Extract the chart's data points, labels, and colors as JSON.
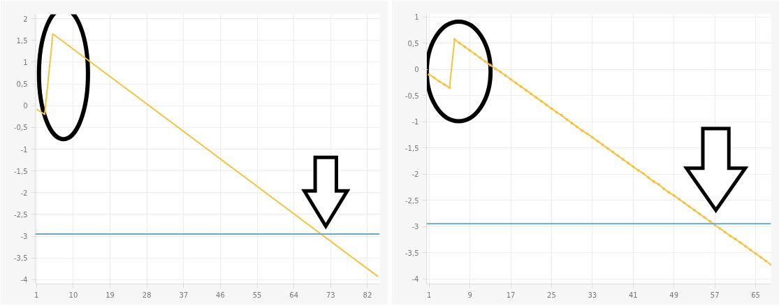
{
  "chart_data": [
    {
      "type": "line",
      "marker": "none",
      "grid": true,
      "xlim": [
        0.7,
        85
      ],
      "ylim": [
        -4.1,
        2.1
      ],
      "xticks": [
        1,
        10,
        19,
        28,
        37,
        46,
        55,
        64,
        73,
        82
      ],
      "yticks": [
        {
          "value": 2,
          "label": "2"
        },
        {
          "value": 1.5,
          "label": "1,5"
        },
        1,
        {
          "value": 0.5,
          "label": "0,5"
        },
        0,
        {
          "value": -0.5,
          "label": "-0,5"
        },
        -1,
        {
          "value": -1.5,
          "label": "-1,5"
        },
        -2,
        {
          "value": -2.5,
          "label": "-2,5"
        },
        -3,
        {
          "value": -3.5,
          "label": "-3,5"
        },
        -4
      ],
      "series": [
        {
          "color": "#f5c342",
          "x": [
            1,
            3,
            5,
            84.6
          ],
          "values": [
            -0.08,
            -0.2,
            1.65,
            -3.93
          ]
        }
      ],
      "ref_lines": [
        {
          "axis": "y",
          "value": -2.95,
          "color": "#6aa8c4"
        }
      ]
    },
    {
      "type": "line",
      "marker": "circle",
      "grid": true,
      "xlim": [
        0.5,
        68
      ],
      "ylim": [
        -4.1,
        1.05
      ],
      "xticks": [
        1,
        9,
        17,
        25,
        33,
        41,
        49,
        57,
        65
      ],
      "yticks": [
        1,
        {
          "value": 0.5,
          "label": "0,5"
        },
        0,
        {
          "value": -0.5,
          "label": "-0,5"
        },
        -1,
        {
          "value": -1.5,
          "label": "-1,5"
        },
        -2,
        {
          "value": -2.5,
          "label": "-2,5"
        },
        -3,
        {
          "value": -3.5,
          "label": "-3,5"
        },
        -4
      ],
      "series": [
        {
          "color": "#f5c342",
          "x": [
            1,
            2,
            3,
            4,
            5,
            6,
            7,
            8,
            9,
            10,
            11,
            12,
            13,
            14,
            15,
            16,
            17,
            18,
            19,
            20,
            21,
            22,
            23,
            24,
            25,
            26,
            27,
            28,
            29,
            30,
            31,
            32,
            33,
            34,
            35,
            36,
            37,
            38,
            39,
            40,
            41,
            42,
            43,
            44,
            45,
            46,
            47,
            48,
            49,
            50,
            51,
            52,
            53,
            54,
            55,
            56,
            57,
            58,
            59,
            60,
            61,
            62,
            63,
            64,
            65,
            66,
            67,
            68
          ],
          "values": [
            -0.1,
            -0.16,
            -0.23,
            -0.29,
            -0.35,
            0.57,
            0.5,
            0.43,
            0.36,
            0.29,
            0.22,
            0.15,
            0.08,
            0.01,
            -0.05,
            -0.12,
            -0.19,
            -0.26,
            -0.33,
            -0.4,
            -0.47,
            -0.54,
            -0.61,
            -0.68,
            -0.75,
            -0.82,
            -0.88,
            -0.96,
            -1.03,
            -1.1,
            -1.17,
            -1.23,
            -1.3,
            -1.37,
            -1.44,
            -1.51,
            -1.58,
            -1.65,
            -1.72,
            -1.79,
            -1.86,
            -1.93,
            -1.99,
            -2.07,
            -2.14,
            -2.2,
            -2.28,
            -2.35,
            -2.41,
            -2.48,
            -2.55,
            -2.62,
            -2.69,
            -2.76,
            -2.83,
            -2.9,
            -2.97,
            -3.04,
            -3.11,
            -3.18,
            -3.24,
            -3.31,
            -3.38,
            -3.45,
            -3.52,
            -3.59,
            -3.66,
            -3.73
          ]
        }
      ],
      "ref_lines": [
        {
          "axis": "y",
          "value": -2.95,
          "color": "#6aa8c4"
        }
      ]
    }
  ]
}
